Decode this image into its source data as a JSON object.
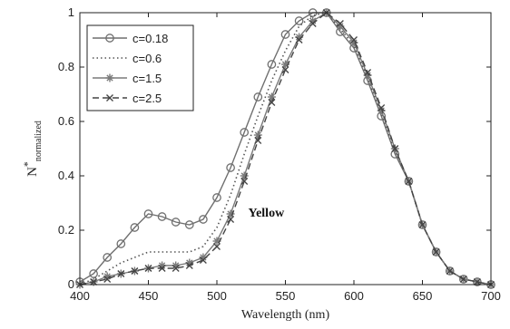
{
  "chart_data": {
    "type": "line",
    "xlabel": "Wavelength (nm)",
    "ylabel_main": "N",
    "ylabel_sup": "*",
    "ylabel_sub": "normalized",
    "xlim": [
      400,
      700
    ],
    "ylim": [
      0,
      1
    ],
    "x_ticks": [
      "400",
      "450",
      "500",
      "550",
      "600",
      "650",
      "700"
    ],
    "y_ticks": [
      "0",
      "0.2",
      "0.4",
      "0.6",
      "0.8",
      "1"
    ],
    "annotation": "Yellow",
    "legend_position": "top-left",
    "grid": false,
    "x": [
      400,
      410,
      420,
      430,
      440,
      450,
      460,
      470,
      480,
      490,
      500,
      510,
      520,
      530,
      540,
      550,
      560,
      570,
      580,
      590,
      600,
      610,
      620,
      630,
      640,
      650,
      660,
      670,
      680,
      690,
      700
    ],
    "series": [
      {
        "name": "c=0.18",
        "style": "solid-circle",
        "color": "#6f6f6f",
        "values": [
          0.01,
          0.04,
          0.1,
          0.15,
          0.21,
          0.26,
          0.25,
          0.23,
          0.22,
          0.24,
          0.32,
          0.43,
          0.56,
          0.69,
          0.81,
          0.92,
          0.97,
          1.0,
          1.0,
          0.93,
          0.87,
          0.75,
          0.62,
          0.48,
          0.38,
          0.22,
          0.12,
          0.05,
          0.02,
          0.01,
          0.0
        ]
      },
      {
        "name": "c=0.6",
        "style": "dotted",
        "color": "#555555",
        "values": [
          0.0,
          0.02,
          0.05,
          0.08,
          0.1,
          0.12,
          0.12,
          0.12,
          0.12,
          0.14,
          0.21,
          0.33,
          0.48,
          0.62,
          0.75,
          0.86,
          0.95,
          0.99,
          1.0,
          0.94,
          0.88,
          0.76,
          0.63,
          0.49,
          0.38,
          0.22,
          0.12,
          0.05,
          0.02,
          0.01,
          0.0
        ]
      },
      {
        "name": "c=1.5",
        "style": "solid-star",
        "color": "#7a7a7a",
        "values": [
          0.0,
          0.01,
          0.03,
          0.04,
          0.05,
          0.06,
          0.07,
          0.07,
          0.08,
          0.1,
          0.16,
          0.26,
          0.4,
          0.55,
          0.69,
          0.81,
          0.91,
          0.97,
          1.0,
          0.95,
          0.89,
          0.77,
          0.64,
          0.5,
          0.38,
          0.22,
          0.12,
          0.05,
          0.02,
          0.01,
          0.0
        ]
      },
      {
        "name": "c=2.5",
        "style": "dashed-x",
        "color": "#444444",
        "values": [
          0.0,
          0.01,
          0.02,
          0.04,
          0.05,
          0.06,
          0.06,
          0.06,
          0.07,
          0.09,
          0.14,
          0.24,
          0.38,
          0.53,
          0.67,
          0.79,
          0.9,
          0.96,
          1.0,
          0.96,
          0.9,
          0.78,
          0.65,
          0.5,
          0.38,
          0.22,
          0.12,
          0.05,
          0.02,
          0.01,
          0.0
        ]
      }
    ]
  }
}
